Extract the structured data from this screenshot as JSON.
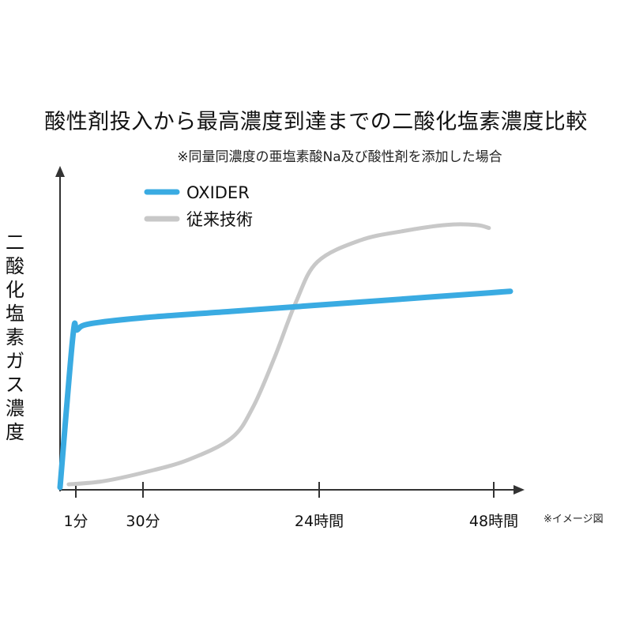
{
  "chart_data": {
    "type": "line",
    "title": "酸性剤投入から最高濃度到達までの二酸化塩素濃度比較",
    "subtitle": "※同量同濃度の亜塩素酸Na及び酸性剤を添加した場合",
    "xlabel": "",
    "ylabel": "二酸化塩素ガス濃度",
    "x_ticks": [
      "1分",
      "30分",
      "24時間",
      "48時間"
    ],
    "note": "※イメージ図",
    "legend_position": "top-left",
    "series": [
      {
        "name": "OXIDER",
        "color": "#3AABE2",
        "points": [
          [
            0,
            0
          ],
          [
            0.03,
            0.49
          ],
          [
            0.04,
            0.51
          ],
          [
            0.07,
            0.53
          ],
          [
            0.2,
            0.55
          ],
          [
            0.4,
            0.57
          ],
          [
            0.6,
            0.59
          ],
          [
            0.8,
            0.61
          ],
          [
            1.0,
            0.63
          ],
          [
            1.05,
            0.635
          ]
        ]
      },
      {
        "name": "従来技術",
        "color": "#C8C8C8",
        "points": [
          [
            0.02,
            0.01
          ],
          [
            0.1,
            0.02
          ],
          [
            0.2,
            0.05
          ],
          [
            0.3,
            0.09
          ],
          [
            0.4,
            0.16
          ],
          [
            0.45,
            0.26
          ],
          [
            0.5,
            0.42
          ],
          [
            0.55,
            0.6
          ],
          [
            0.6,
            0.73
          ],
          [
            0.7,
            0.8
          ],
          [
            0.8,
            0.83
          ],
          [
            0.9,
            0.85
          ],
          [
            0.97,
            0.85
          ],
          [
            1.0,
            0.84
          ]
        ]
      }
    ],
    "x_domain": [
      0,
      1.05
    ],
    "y_domain": [
      0,
      1
    ]
  }
}
